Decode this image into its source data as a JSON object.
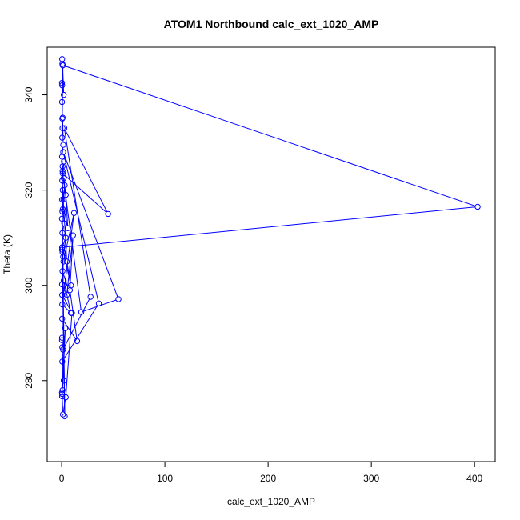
{
  "chart_data": {
    "type": "line",
    "title": "ATOM1 Northbound calc_ext_1020_AMP",
    "xlabel": "calc_ext_1020_AMP",
    "ylabel": "Theta (K)",
    "xlim": [
      -14,
      420
    ],
    "ylim": [
      263,
      350
    ],
    "xticks": [
      0,
      100,
      200,
      300,
      400
    ],
    "yticks": [
      280,
      300,
      320,
      340
    ],
    "grid": false,
    "series_color": "#0000ff",
    "marker": "open-circle",
    "x": [
      0.5,
      0.7,
      0.3,
      0.4,
      1.2,
      0.6,
      0.8,
      0.5,
      1.0,
      1.5,
      0.4,
      0.9,
      2.2,
      0.6,
      1.8,
      3.0,
      0.3,
      1.1,
      2.5,
      0.7,
      0.5,
      4.0,
      1.4,
      0.8,
      6.0,
      2.0,
      9.0,
      0.6,
      12.0,
      1.7,
      0.4,
      5.0,
      11.0,
      8.0,
      15.0,
      0.5,
      0.4,
      1.3,
      28.0,
      2.6,
      45.0,
      1.0,
      19.0,
      55.0,
      1.5,
      36.0,
      0.6,
      0.3,
      3.5,
      0.9,
      0.4,
      0.3,
      2.0,
      0.6,
      0.5,
      1.2,
      4.0,
      10.0,
      0.5,
      0.8,
      0.4,
      3.0,
      0.7,
      0.9,
      2.0,
      4.0,
      6.0,
      0.5,
      1.0,
      5.0,
      9.0,
      0.7,
      403.0,
      1.0,
      2.0,
      0.5
    ],
    "y": [
      347.5,
      346.5,
      342.5,
      338.5,
      346.2,
      335.0,
      333.0,
      331.0,
      335.2,
      329.5,
      327.0,
      324.0,
      326.0,
      322.0,
      318.0,
      321.0,
      314.0,
      316.0,
      313.0,
      311.0,
      308.0,
      310.0,
      306.0,
      303.0,
      299.5,
      301.0,
      294.2,
      296.0,
      315.2,
      305.0,
      300.2,
      298.0,
      310.5,
      299.0,
      288.3,
      293.0,
      289.0,
      286.5,
      297.6,
      333.0,
      315.0,
      323.5,
      294.4,
      297.1,
      328.0,
      296.2,
      284.0,
      277.5,
      291.0,
      278.0,
      276.7,
      288.5,
      280.0,
      287.0,
      277.2,
      272.9,
      276.5,
      294.2,
      298.0,
      307.0,
      307.5,
      272.5,
      315.5,
      325.0,
      322.5,
      319.0,
      312.0,
      318.0,
      320.0,
      305.0,
      300.0,
      308.0,
      316.5,
      346.2,
      340.0,
      342.0
    ]
  }
}
